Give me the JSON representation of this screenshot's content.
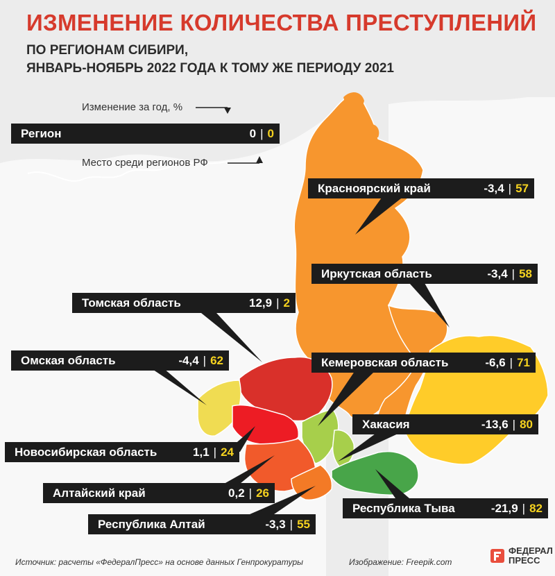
{
  "header": {
    "title": "ИЗМЕНЕНИЕ КОЛИЧЕСТВА ПРЕСТУПЛЕНИЙ",
    "subtitle_line1": "ПО РЕГИОНАМ СИБИРИ,",
    "subtitle_line2": "ЯНВАРЬ-НОЯБРЬ 2022 ГОДА К ТОМУ ЖЕ ПЕРИОДУ 2021"
  },
  "legend": {
    "change_label": "Изменение за год, %",
    "rank_label": "Место среди регионов РФ",
    "sample_name": "Регион",
    "sample_change": "0",
    "sample_rank": "0"
  },
  "chart_data": {
    "type": "table",
    "columns": [
      "Регион",
      "Изменение за год, %",
      "Место среди регионов РФ"
    ],
    "rows": [
      {
        "region": "Красноярский край",
        "change": "-3,4",
        "rank": "57",
        "color": "#f7962e"
      },
      {
        "region": "Иркутская область",
        "change": "-3,4",
        "rank": "58",
        "color": "#f7962e"
      },
      {
        "region": "Томская область",
        "change": "12,9",
        "rank": "2",
        "color": "#d9302a"
      },
      {
        "region": "Омская область",
        "change": "-4,4",
        "rank": "62",
        "color": "#f0dc52"
      },
      {
        "region": "Кемеровская область",
        "change": "-6,6",
        "rank": "71",
        "color": "#a7cf4b"
      },
      {
        "region": "Хакасия",
        "change": "-13,6",
        "rank": "80",
        "color": "#a7cf4b"
      },
      {
        "region": "Новосибирская область",
        "change": "1,1",
        "rank": "24",
        "color": "#ed1c24"
      },
      {
        "region": "Алтайский край",
        "change": "0,2",
        "rank": "26",
        "color": "#f15a2b"
      },
      {
        "region": "Республика Тыва",
        "change": "-21,9",
        "rank": "82",
        "color": "#48a549"
      },
      {
        "region": "Республика Алтай",
        "change": "-3,3",
        "rank": "55",
        "color": "#f37a26"
      }
    ]
  },
  "colors": {
    "title": "#d63a2c",
    "label_bg": "#1c1c1c",
    "rank": "#f5d21f",
    "zabaikalsky": "#ffcc29",
    "background": "#ececec",
    "land": "#f8f8f8"
  },
  "footer": {
    "source": "Источник: расчеты «ФедералПресс» на основе данных Генпрокуратуры",
    "image_credit": "Изображение: Freepik.com",
    "logo_line1": "ФЕДЕРАЛ",
    "logo_line2": "ПРЕСС"
  }
}
